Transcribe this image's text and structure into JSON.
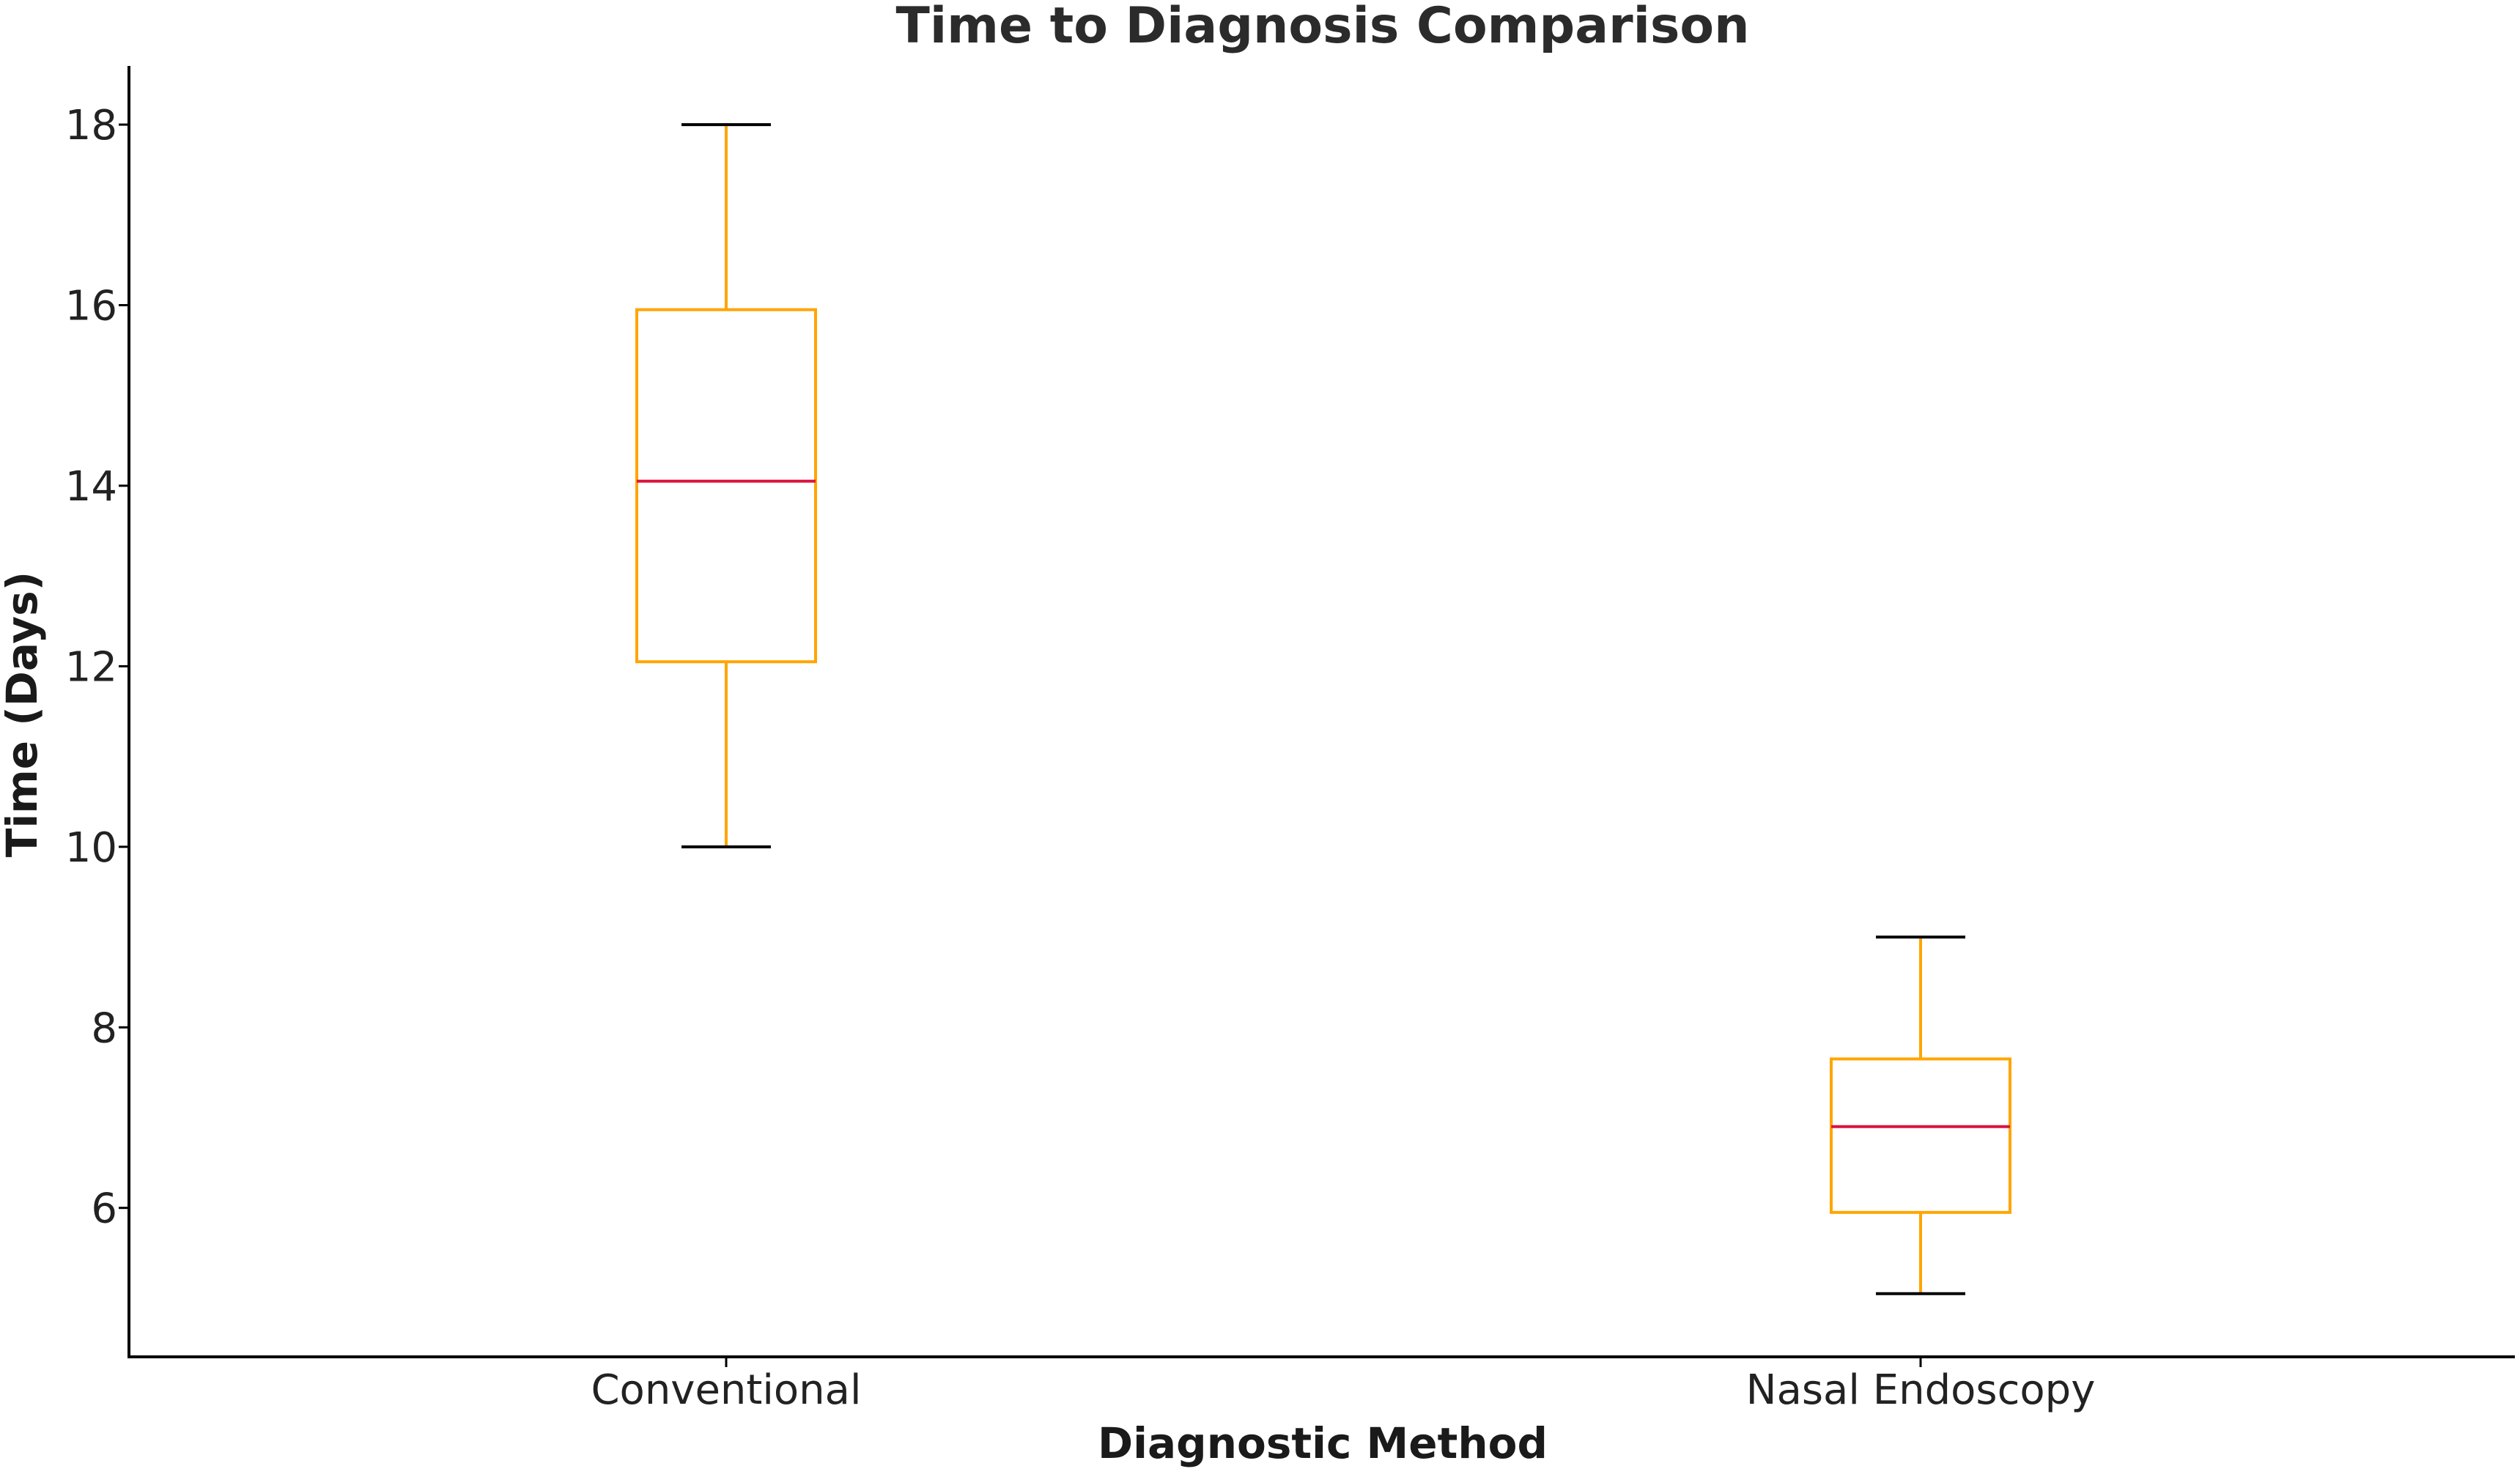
{
  "chart_data": {
    "type": "box",
    "title": "Time to Diagnosis Comparison",
    "xlabel": "Diagnostic Method",
    "ylabel": "Time (Days)",
    "categories": [
      "Conventional",
      "Nasal Endoscopy"
    ],
    "boxes": [
      {
        "category": "Conventional",
        "whisker_low": 10,
        "q1": 12.05,
        "median": 14.05,
        "q3": 15.95,
        "whisker_high": 18
      },
      {
        "category": "Nasal Endoscopy",
        "whisker_low": 5.05,
        "q1": 5.95,
        "median": 6.9,
        "q3": 7.65,
        "whisker_high": 9
      }
    ],
    "ylim": [
      4.35,
      18.65
    ],
    "yticks": [
      6,
      8,
      10,
      12,
      14,
      16,
      18
    ],
    "grid": false,
    "legend": "none",
    "colors": {
      "box": "#FFA500",
      "median": "#DC143C",
      "cap": "#000000",
      "axis": "#000000"
    }
  }
}
